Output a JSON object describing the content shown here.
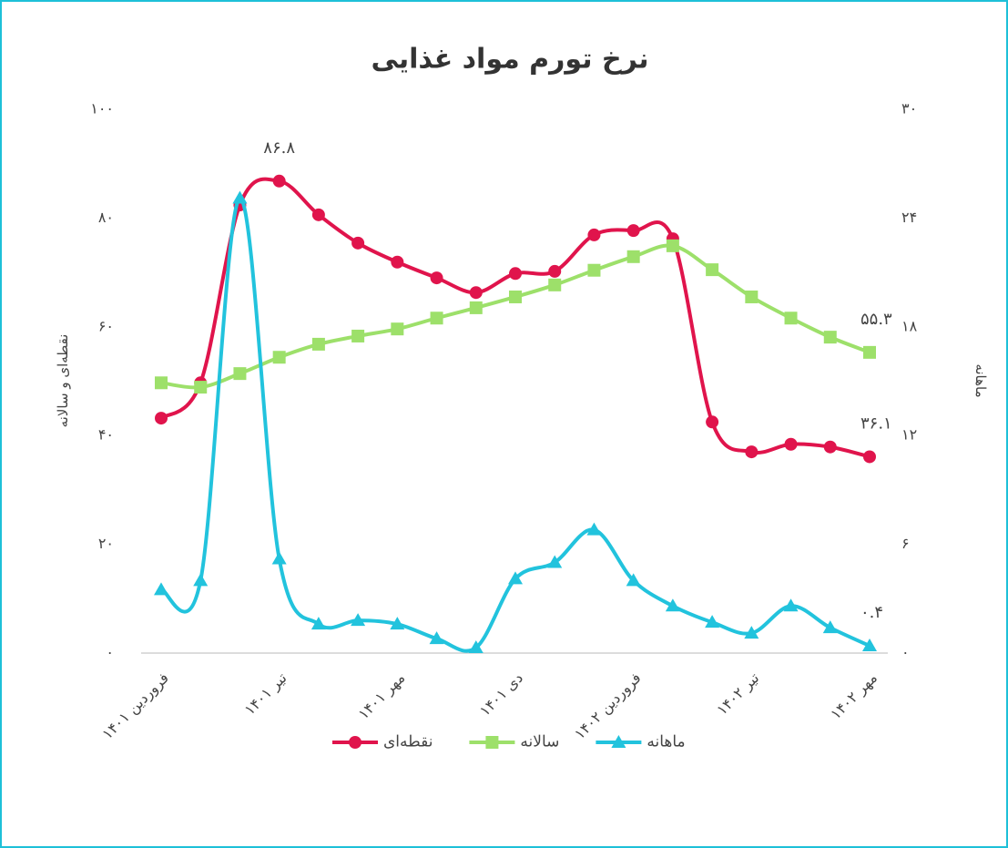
{
  "chart_data": {
    "type": "line",
    "title": "نرخ تورم مواد غذایی",
    "ylabel": "نقطه‌ای و سالانه",
    "y2label": "ماهانه",
    "categories": [
      "فروردین ۱۴۰۱",
      null,
      null,
      "تیر ۱۴۰۱",
      null,
      null,
      "مهر ۱۴۰۱",
      null,
      null,
      "دی ۱۴۰۱",
      null,
      null,
      "فروردین ۱۴۰۲",
      null,
      null,
      "تیر ۱۴۰۲",
      null,
      null,
      "مهر ۱۴۰۲"
    ],
    "ylim": [
      0,
      100
    ],
    "yticks": [
      {
        "value": 0,
        "label": "۰"
      },
      {
        "value": 20,
        "label": "۲۰"
      },
      {
        "value": 40,
        "label": "۴۰"
      },
      {
        "value": 60,
        "label": "۶۰"
      },
      {
        "value": 80,
        "label": "۸۰"
      },
      {
        "value": 100,
        "label": "۱۰۰"
      }
    ],
    "y2lim": [
      0,
      30
    ],
    "y2ticks": [
      {
        "value": 0,
        "label": "۰"
      },
      {
        "value": 6,
        "label": "۶"
      },
      {
        "value": 12,
        "label": "۱۲"
      },
      {
        "value": 18,
        "label": "۱۸"
      },
      {
        "value": 24,
        "label": "۲۴"
      },
      {
        "value": 30,
        "label": "۳۰"
      }
    ],
    "series": [
      {
        "name": "نقطه‌ای",
        "color": "#e0144c",
        "marker": "circle",
        "values": [
          43.2,
          49.7,
          82.4,
          86.8,
          80.6,
          75.4,
          71.9,
          69.0,
          66.3,
          69.8,
          70.2,
          76.9,
          77.7,
          76.2,
          42.5,
          37.0,
          38.4,
          37.9,
          36.1
        ],
        "value_labels": [
          null,
          null,
          null,
          "۸۶.۸",
          null,
          null,
          null,
          null,
          null,
          null,
          null,
          null,
          null,
          null,
          null,
          null,
          null,
          null,
          "۳۶.۱"
        ]
      },
      {
        "name": "سالانه",
        "color": "#9de06a",
        "marker": "square",
        "values": [
          49.7,
          48.9,
          51.4,
          54.4,
          56.8,
          58.3,
          59.6,
          61.6,
          63.5,
          65.5,
          67.7,
          70.4,
          72.9,
          74.9,
          70.5,
          65.5,
          61.6,
          58.1,
          55.3
        ],
        "value_labels": [
          null,
          null,
          null,
          null,
          null,
          null,
          null,
          null,
          null,
          null,
          null,
          null,
          null,
          null,
          null,
          null,
          null,
          null,
          "۵۵.۳"
        ]
      },
      {
        "name": "ماهانه",
        "color": "#22c3dd",
        "marker": "triangle",
        "axis": "y2",
        "values": [
          3.5,
          4.0,
          25.1,
          5.2,
          1.6,
          1.8,
          1.6,
          0.8,
          0.3,
          4.1,
          5.0,
          6.8,
          4.0,
          2.6,
          1.7,
          1.1,
          2.6,
          1.4,
          0.4
        ],
        "value_labels": [
          null,
          null,
          null,
          null,
          null,
          null,
          null,
          null,
          null,
          null,
          null,
          null,
          null,
          null,
          null,
          null,
          null,
          null,
          "۰.۴"
        ]
      }
    ]
  }
}
